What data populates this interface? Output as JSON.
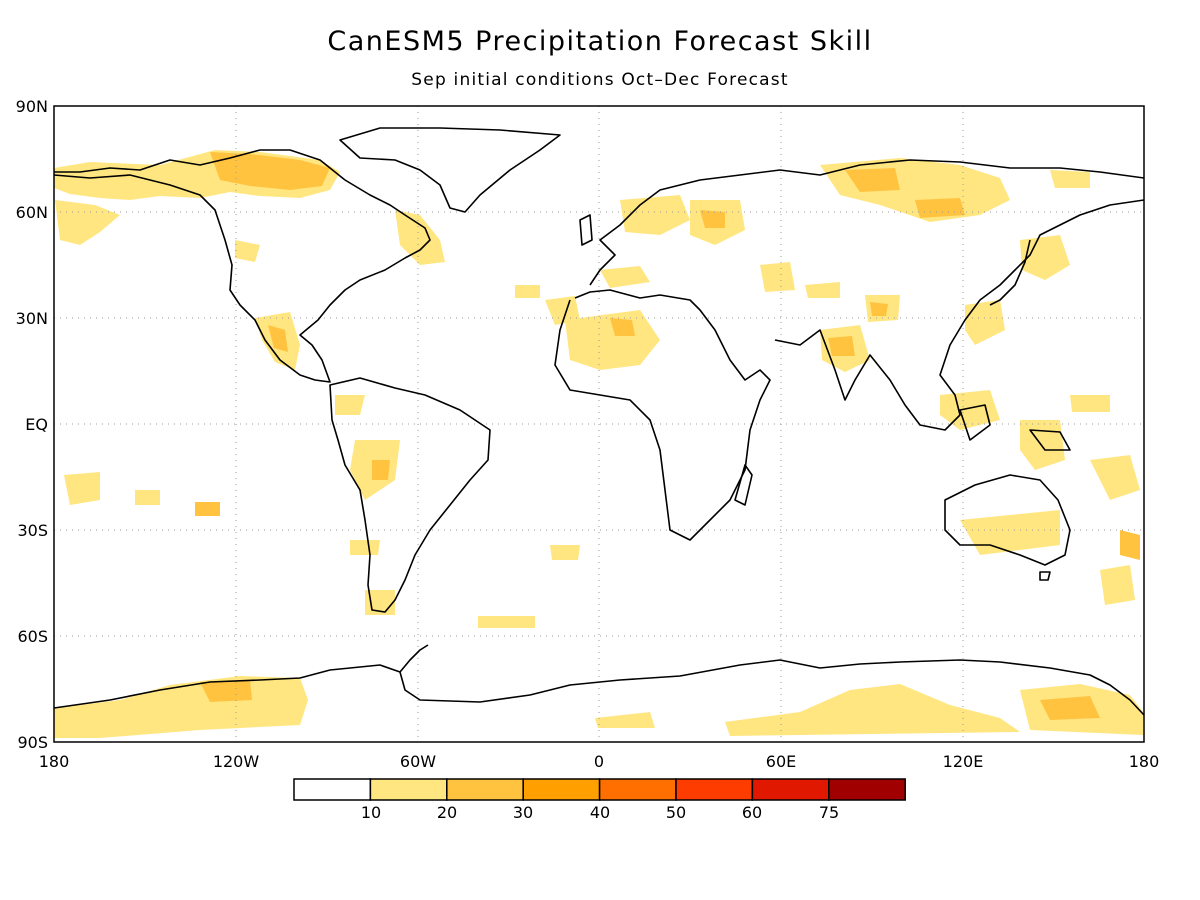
{
  "title": "CanESM5 Precipitation Forecast Skill",
  "subtitle": "Sep initial conditions  Oct–Dec Forecast",
  "lat_ticks": [
    "90N",
    "60N",
    "30N",
    "EQ",
    "30S",
    "60S",
    "90S"
  ],
  "lon_ticks": [
    "180",
    "120W",
    "60W",
    "0",
    "60E",
    "120E",
    "180"
  ],
  "colorbar": {
    "labels": [
      "10",
      "20",
      "30",
      "40",
      "50",
      "60",
      "75"
    ],
    "colors": [
      "#ffffff",
      "#ffe680",
      "#ffc340",
      "#ffa000",
      "#ff6f00",
      "#ff3c00",
      "#e01800",
      "#a00000"
    ]
  },
  "colors": {
    "land_outline": "#000000",
    "frame": "#000000",
    "grid": "#9a9a9a"
  },
  "map": {
    "projection": "equirectangular",
    "lon_range": [
      -180,
      180
    ],
    "lat_range": [
      -90,
      90
    ],
    "gridlines": "dotted"
  }
}
